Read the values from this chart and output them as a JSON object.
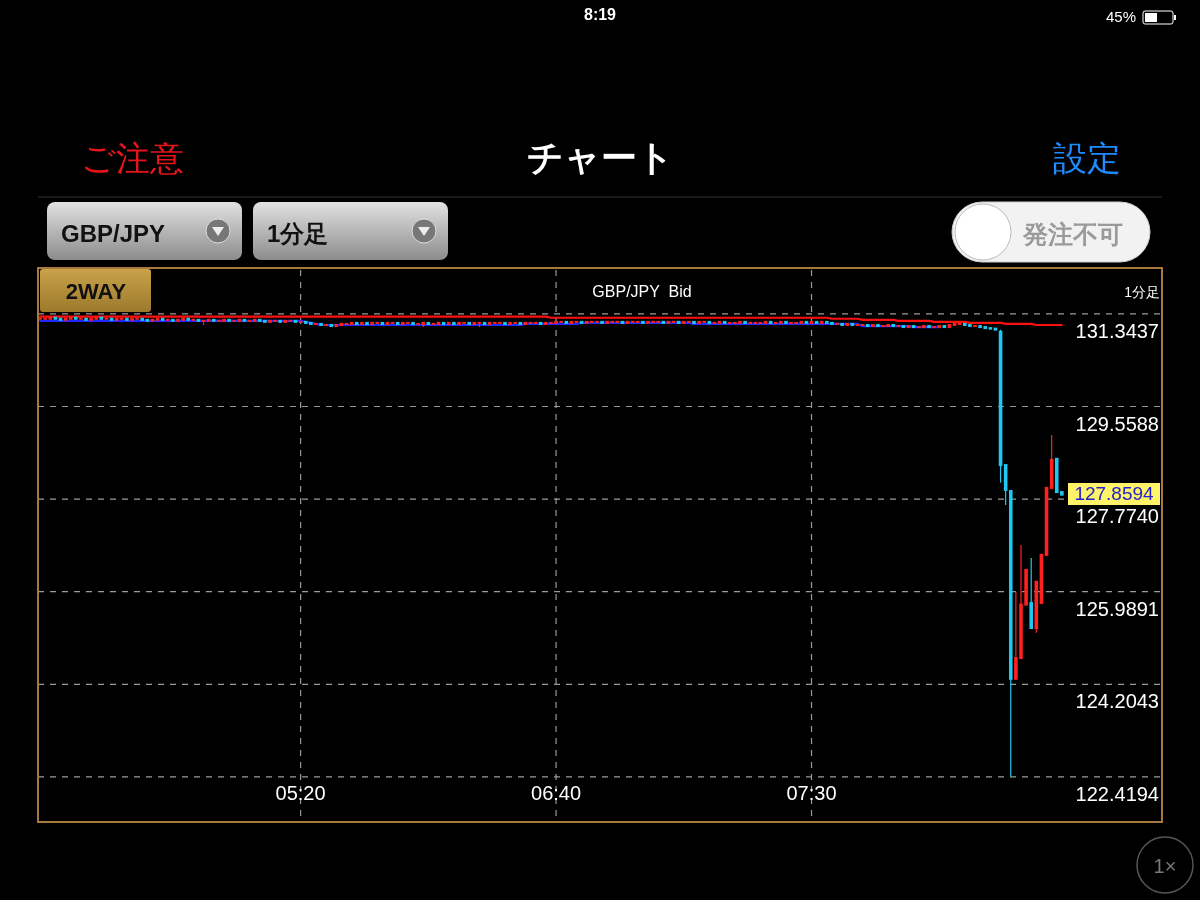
{
  "chart_data": {
    "type": "candlestick",
    "title": "GBP/JPY  Bid",
    "annotations": [
      "8:19",
      "45%",
      "ご注意",
      "チャート",
      "設定",
      "GBP/JPY",
      "1分足",
      "発注不可",
      "2WAY",
      "1分足",
      "1×",
      "127.8594"
    ],
    "categories": [
      null,
      null,
      null,
      null,
      null,
      null,
      null,
      null,
      null,
      null,
      null,
      null,
      null,
      null,
      null,
      null,
      null,
      null,
      null,
      null,
      null,
      null,
      null,
      null,
      null,
      null,
      null,
      null,
      null,
      null,
      null,
      null,
      null,
      null,
      null,
      null,
      null,
      null,
      null,
      null,
      null,
      null,
      null,
      null,
      null,
      null,
      null,
      null,
      null,
      null,
      null,
      "05:20",
      null,
      null,
      null,
      null,
      null,
      null,
      null,
      null,
      null,
      null,
      null,
      null,
      null,
      null,
      null,
      null,
      null,
      null,
      null,
      null,
      null,
      null,
      null,
      null,
      null,
      null,
      null,
      null,
      null,
      null,
      null,
      null,
      null,
      null,
      null,
      null,
      null,
      null,
      null,
      null,
      null,
      null,
      null,
      null,
      null,
      null,
      null,
      null,
      null,
      "06:40",
      null,
      null,
      null,
      null,
      null,
      null,
      null,
      null,
      null,
      null,
      null,
      null,
      null,
      null,
      null,
      null,
      null,
      null,
      null,
      null,
      null,
      null,
      null,
      null,
      null,
      null,
      null,
      null,
      null,
      null,
      null,
      null,
      null,
      null,
      null,
      null,
      null,
      null,
      null,
      null,
      null,
      null,
      null,
      null,
      null,
      null,
      null,
      null,
      null,
      "07:30",
      null,
      null,
      null,
      null,
      null,
      null,
      null,
      null,
      null,
      null,
      null,
      null,
      null,
      null,
      null,
      null,
      null,
      null,
      null,
      null,
      null,
      null,
      null,
      null,
      null,
      null,
      null,
      null,
      null,
      null,
      null,
      null,
      null,
      null,
      null,
      null,
      null,
      null,
      null,
      null,
      null,
      null,
      null,
      null,
      null,
      null,
      null,
      null,
      null,
      null,
      null,
      null,
      null,
      null,
      null,
      null,
      null,
      null,
      null,
      null,
      null,
      null,
      null,
      null,
      null,
      null,
      null,
      null
    ],
    "ohlc": [
      [
        131.25,
        131.25,
        131.25,
        131.25
      ],
      [
        131.25,
        131.25,
        131.25,
        131.25
      ],
      [
        131.25,
        131.27,
        131.25,
        131.27
      ],
      [
        131.27,
        131.27,
        131.25,
        131.25
      ],
      [
        131.25,
        131.25,
        131.23,
        131.23
      ],
      [
        131.23,
        131.25,
        131.23,
        131.25
      ],
      [
        131.25,
        131.27,
        131.25,
        131.27
      ],
      [
        131.27,
        131.27,
        131.25,
        131.25
      ],
      [
        131.25,
        131.25,
        131.25,
        131.25
      ],
      [
        131.25,
        131.25,
        131.23,
        131.23
      ],
      [
        131.23,
        131.25,
        131.23,
        131.25
      ],
      [
        131.25,
        131.27,
        131.25,
        131.27
      ],
      [
        131.27,
        131.27,
        131.25,
        131.25
      ],
      [
        131.25,
        131.25,
        131.25,
        131.25
      ],
      [
        131.25,
        131.25,
        131.23,
        131.23
      ],
      [
        131.23,
        131.25,
        131.23,
        131.25
      ],
      [
        131.25,
        131.25,
        131.25,
        131.25
      ],
      [
        131.25,
        131.25,
        131.23,
        131.23
      ],
      [
        131.23,
        131.25,
        131.23,
        131.25
      ],
      [
        131.25,
        131.25,
        131.25,
        131.25
      ],
      [
        131.25,
        131.25,
        131.23,
        131.23
      ],
      [
        131.23,
        131.23,
        131.21,
        131.21
      ],
      [
        131.21,
        131.23,
        131.21,
        131.23
      ],
      [
        131.23,
        131.25,
        131.23,
        131.25
      ],
      [
        131.25,
        131.25,
        131.23,
        131.23
      ],
      [
        131.23,
        131.23,
        131.23,
        131.23
      ],
      [
        131.23,
        131.23,
        131.21,
        131.21
      ],
      [
        131.21,
        131.23,
        131.21,
        131.23
      ],
      [
        131.23,
        131.25,
        131.23,
        131.25
      ],
      [
        131.25,
        131.25,
        131.23,
        131.23
      ],
      [
        131.23,
        131.23,
        131.23,
        131.23
      ],
      [
        131.23,
        131.23,
        131.21,
        131.21
      ],
      [
        131.21,
        131.21,
        131.13,
        131.21
      ],
      [
        131.21,
        131.23,
        131.21,
        131.23
      ],
      [
        131.23,
        131.23,
        131.21,
        131.21
      ],
      [
        131.21,
        131.21,
        131.21,
        131.21
      ],
      [
        131.21,
        131.23,
        131.21,
        131.23
      ],
      [
        131.23,
        131.23,
        131.21,
        131.21
      ],
      [
        131.21,
        131.21,
        131.21,
        131.21
      ],
      [
        131.21,
        131.23,
        131.21,
        131.23
      ],
      [
        131.23,
        131.23,
        131.21,
        131.21
      ],
      [
        131.21,
        131.21,
        131.21,
        131.21
      ],
      [
        131.21,
        131.23,
        131.21,
        131.23
      ],
      [
        131.23,
        131.23,
        131.21,
        131.21
      ],
      [
        131.21,
        131.21,
        131.19,
        131.19
      ],
      [
        131.19,
        131.21,
        131.19,
        131.21
      ],
      [
        131.21,
        131.21,
        131.21,
        131.21
      ],
      [
        131.21,
        131.21,
        131.19,
        131.19
      ],
      [
        131.19,
        131.21,
        131.19,
        131.21
      ],
      [
        131.21,
        131.21,
        131.21,
        131.21
      ],
      [
        131.21,
        131.21,
        131.19,
        131.19
      ],
      [
        131.19,
        131.19,
        131.19,
        131.19
      ],
      [
        131.19,
        131.19,
        131.17,
        131.17
      ],
      [
        131.17,
        131.17,
        131.15,
        131.15
      ],
      [
        131.15,
        131.15,
        131.15,
        131.15
      ],
      [
        131.15,
        131.15,
        131.13,
        131.13
      ],
      [
        131.13,
        131.13,
        131.13,
        131.13
      ],
      [
        131.13,
        131.13,
        131.11,
        131.11
      ],
      [
        131.11,
        131.13,
        131.11,
        131.13
      ],
      [
        131.13,
        131.15,
        131.13,
        131.15
      ],
      [
        131.15,
        131.15,
        131.15,
        131.15
      ],
      [
        131.15,
        131.17,
        131.15,
        131.17
      ],
      [
        131.17,
        131.17,
        131.15,
        131.15
      ],
      [
        131.15,
        131.17,
        131.15,
        131.17
      ],
      [
        131.17,
        131.17,
        131.15,
        131.15
      ],
      [
        131.15,
        131.17,
        131.15,
        131.17
      ],
      [
        131.17,
        131.17,
        131.17,
        131.17
      ],
      [
        131.17,
        131.17,
        131.15,
        131.15
      ],
      [
        131.15,
        131.17,
        131.15,
        131.17
      ],
      [
        131.17,
        131.17,
        131.17,
        131.17
      ],
      [
        131.17,
        131.17,
        131.15,
        131.15
      ],
      [
        131.15,
        131.17,
        131.15,
        131.17
      ],
      [
        131.17,
        131.17,
        131.17,
        131.17
      ],
      [
        131.17,
        131.17,
        131.15,
        131.15
      ],
      [
        131.15,
        131.15,
        131.15,
        131.15
      ],
      [
        131.15,
        131.17,
        131.09,
        131.17
      ],
      [
        131.17,
        131.17,
        131.15,
        131.15
      ],
      [
        131.15,
        131.15,
        131.15,
        131.15
      ],
      [
        131.15,
        131.17,
        131.15,
        131.17
      ],
      [
        131.17,
        131.17,
        131.15,
        131.15
      ],
      [
        131.15,
        131.17,
        131.15,
        131.17
      ],
      [
        131.17,
        131.17,
        131.15,
        131.15
      ],
      [
        131.15,
        131.17,
        131.15,
        131.17
      ],
      [
        131.17,
        131.17,
        131.17,
        131.17
      ],
      [
        131.17,
        131.17,
        131.15,
        131.15
      ],
      [
        131.15,
        131.17,
        131.15,
        131.17
      ],
      [
        131.17,
        131.17,
        131.09,
        131.17
      ],
      [
        131.17,
        131.17,
        131.15,
        131.15
      ],
      [
        131.15,
        131.17,
        131.15,
        131.17
      ],
      [
        131.17,
        131.17,
        131.17,
        131.17
      ],
      [
        131.17,
        131.17,
        131.17,
        131.17
      ],
      [
        131.17,
        131.17,
        131.15,
        131.15
      ],
      [
        131.15,
        131.17,
        131.15,
        131.17
      ],
      [
        131.17,
        131.17,
        131.17,
        131.17
      ],
      [
        131.17,
        131.17,
        131.15,
        131.15
      ],
      [
        131.15,
        131.17,
        131.15,
        131.17
      ],
      [
        131.17,
        131.17,
        131.17,
        131.17
      ],
      [
        131.17,
        131.17,
        131.17,
        131.17
      ],
      [
        131.17,
        131.17,
        131.15,
        131.15
      ],
      [
        131.15,
        131.17,
        131.15,
        131.17
      ],
      [
        131.17,
        131.17,
        131.17,
        131.17
      ],
      [
        131.17,
        131.19,
        131.17,
        131.19
      ],
      [
        131.19,
        131.19,
        131.19,
        131.19
      ],
      [
        131.19,
        131.19,
        131.17,
        131.17
      ],
      [
        131.17,
        131.19,
        131.17,
        131.19
      ],
      [
        131.19,
        131.19,
        131.19,
        131.19
      ],
      [
        131.19,
        131.19,
        131.17,
        131.17
      ],
      [
        131.17,
        131.19,
        131.17,
        131.19
      ],
      [
        131.19,
        131.19,
        131.19,
        131.19
      ],
      [
        131.19,
        131.19,
        131.19,
        131.19
      ],
      [
        131.19,
        131.19,
        131.17,
        131.17
      ],
      [
        131.17,
        131.19,
        131.17,
        131.19
      ],
      [
        131.19,
        131.19,
        131.19,
        131.19
      ],
      [
        131.19,
        131.19,
        131.19,
        131.19
      ],
      [
        131.19,
        131.19,
        131.17,
        131.17
      ],
      [
        131.17,
        131.19,
        131.17,
        131.19
      ],
      [
        131.19,
        131.19,
        131.19,
        131.19
      ],
      [
        131.19,
        131.19,
        131.19,
        131.19
      ],
      [
        131.19,
        131.19,
        131.17,
        131.17
      ],
      [
        131.17,
        131.19,
        131.17,
        131.19
      ],
      [
        131.19,
        131.19,
        131.19,
        131.19
      ],
      [
        131.19,
        131.19,
        131.19,
        131.19
      ],
      [
        131.19,
        131.19,
        131.17,
        131.17
      ],
      [
        131.17,
        131.19,
        131.17,
        131.19
      ],
      [
        131.19,
        131.19,
        131.19,
        131.19
      ],
      [
        131.19,
        131.19,
        131.17,
        131.17
      ],
      [
        131.17,
        131.19,
        131.17,
        131.19
      ],
      [
        131.19,
        131.19,
        131.19,
        131.19
      ],
      [
        131.19,
        131.19,
        131.17,
        131.17
      ],
      [
        131.17,
        131.19,
        131.17,
        131.19
      ],
      [
        131.19,
        131.19,
        131.19,
        131.19
      ],
      [
        131.19,
        131.19,
        131.17,
        131.17
      ],
      [
        131.17,
        131.17,
        131.17,
        131.17
      ],
      [
        131.17,
        131.19,
        131.17,
        131.19
      ],
      [
        131.19,
        131.19,
        131.17,
        131.17
      ],
      [
        131.17,
        131.17,
        131.17,
        131.17
      ],
      [
        131.17,
        131.17,
        131.17,
        131.17
      ],
      [
        131.17,
        131.19,
        131.17,
        131.19
      ],
      [
        131.19,
        131.19,
        131.17,
        131.17
      ],
      [
        131.17,
        131.17,
        131.17,
        131.17
      ],
      [
        131.17,
        131.17,
        131.17,
        131.17
      ],
      [
        131.17,
        131.17,
        131.17,
        131.17
      ],
      [
        131.17,
        131.19,
        131.17,
        131.19
      ],
      [
        131.19,
        131.19,
        131.17,
        131.17
      ],
      [
        131.17,
        131.17,
        131.17,
        131.17
      ],
      [
        131.17,
        131.19,
        131.17,
        131.19
      ],
      [
        131.19,
        131.19,
        131.17,
        131.17
      ],
      [
        131.17,
        131.17,
        131.17,
        131.17
      ],
      [
        131.17,
        131.17,
        131.17,
        131.17
      ],
      [
        131.17,
        131.19,
        131.17,
        131.19
      ],
      [
        131.19,
        131.19,
        131.17,
        131.17
      ],
      [
        131.17,
        131.19,
        131.17,
        131.19
      ],
      [
        131.19,
        131.19,
        131.17,
        131.17
      ],
      [
        131.17,
        131.19,
        131.17,
        131.19
      ],
      [
        131.19,
        131.19,
        131.17,
        131.17
      ],
      [
        131.17,
        131.17,
        131.15,
        131.15
      ],
      [
        131.15,
        131.15,
        131.15,
        131.15
      ],
      [
        131.15,
        131.15,
        131.13,
        131.13
      ],
      [
        131.13,
        131.15,
        131.13,
        131.15
      ],
      [
        131.15,
        131.15,
        131.13,
        131.13
      ],
      [
        131.13,
        131.13,
        131.13,
        131.13
      ],
      [
        131.13,
        131.13,
        131.13,
        131.13
      ],
      [
        131.13,
        131.13,
        131.11,
        131.11
      ],
      [
        131.11,
        131.13,
        131.11,
        131.13
      ],
      [
        131.13,
        131.13,
        131.11,
        131.11
      ],
      [
        131.11,
        131.11,
        131.11,
        131.11
      ],
      [
        131.11,
        131.13,
        131.11,
        131.13
      ],
      [
        131.13,
        131.13,
        131.11,
        131.11
      ],
      [
        131.11,
        131.11,
        131.11,
        131.11
      ],
      [
        131.11,
        131.11,
        131.09,
        131.09
      ],
      [
        131.09,
        131.11,
        131.09,
        131.11
      ],
      [
        131.11,
        131.11,
        131.09,
        131.09
      ],
      [
        131.09,
        131.09,
        131.09,
        131.09
      ],
      [
        131.09,
        131.11,
        131.09,
        131.11
      ],
      [
        131.11,
        131.11,
        131.09,
        131.09
      ],
      [
        131.09,
        131.09,
        131.09,
        131.09
      ],
      [
        131.09,
        131.11,
        131.09,
        131.11
      ],
      [
        131.11,
        131.11,
        131.09,
        131.09
      ],
      [
        131.09,
        131.13,
        131.09,
        131.13
      ],
      [
        131.13,
        131.15,
        131.13,
        131.15
      ],
      [
        131.15,
        131.15,
        131.15,
        131.15
      ],
      [
        131.15,
        131.15,
        131.13,
        131.13
      ],
      [
        131.13,
        131.13,
        131.11,
        131.11
      ],
      [
        131.11,
        131.11,
        131.11,
        131.11
      ],
      [
        131.11,
        131.11,
        131.09,
        131.09
      ],
      [
        131.09,
        131.09,
        131.07,
        131.07
      ],
      [
        131.07,
        131.07,
        131.06,
        131.06
      ],
      [
        131.06,
        131.06,
        131.04,
        131.04
      ],
      [
        131.0,
        131.04,
        128.09,
        128.43
      ],
      [
        128.43,
        128.43,
        127.66,
        127.95
      ],
      [
        127.93,
        127.93,
        122.42,
        124.31
      ],
      [
        124.31,
        125.99,
        124.31,
        124.71
      ],
      [
        124.71,
        126.89,
        124.71,
        125.74
      ],
      [
        125.74,
        126.41,
        125.74,
        126.41
      ],
      [
        125.77,
        126.64,
        125.29,
        125.29
      ],
      [
        125.29,
        126.18,
        125.2,
        126.18
      ],
      [
        125.77,
        126.7,
        125.77,
        126.7
      ],
      [
        126.7,
        127.99,
        126.7,
        127.99
      ],
      [
        127.99,
        129.01,
        127.99,
        128.53
      ],
      [
        128.55,
        128.55,
        127.91,
        127.91
      ],
      [
        127.91,
        127.91,
        127.86,
        127.86
      ],
      null,
      null,
      null,
      null,
      null,
      null,
      null,
      null,
      null,
      null,
      null,
      null,
      null,
      null,
      null,
      null,
      null,
      null,
      null
    ],
    "colors": [
      "#ff2020",
      "#ff2020",
      "#ff2020",
      "#1ec8f0",
      "#1ec8f0",
      "#ff2020",
      "#ff2020",
      "#1ec8f0",
      "#ff2020",
      "#1ec8f0",
      "#ff2020",
      "#ff2020",
      "#1ec8f0",
      "#ff2020",
      "#1ec8f0",
      "#ff2020",
      "#ff2020",
      "#1ec8f0",
      "#ff2020",
      "#ff2020",
      "#1ec8f0",
      "#1ec8f0",
      "#ff2020",
      "#ff2020",
      "#1ec8f0",
      "#ff2020",
      "#1ec8f0",
      "#ff2020",
      "#ff2020",
      "#1ec8f0",
      "#ff2020",
      "#1ec8f0",
      "#ff2020",
      "#ff2020",
      "#1ec8f0",
      "#ff2020",
      "#ff2020",
      "#1ec8f0",
      "#ff2020",
      "#ff2020",
      "#1ec8f0",
      "#ff2020",
      "#ff2020",
      "#1ec8f0",
      "#1ec8f0",
      "#ff2020",
      "#ff2020",
      "#1ec8f0",
      "#ff2020",
      "#ff2020",
      "#1ec8f0",
      "#ff2020",
      "#1ec8f0",
      "#1ec8f0",
      "#ff2020",
      "#1ec8f0",
      "#ff2020",
      "#1ec8f0",
      "#ff2020",
      "#ff2020",
      "#ff2020",
      "#ff2020",
      "#1ec8f0",
      "#ff2020",
      "#1ec8f0",
      "#ff2020",
      "#ff2020",
      "#1ec8f0",
      "#ff2020",
      "#ff2020",
      "#1ec8f0",
      "#ff2020",
      "#ff2020",
      "#1ec8f0",
      "#ff2020",
      "#ff2020",
      "#1ec8f0",
      "#ff2020",
      "#ff2020",
      "#1ec8f0",
      "#ff2020",
      "#1ec8f0",
      "#ff2020",
      "#ff2020",
      "#1ec8f0",
      "#ff2020",
      "#ff2020",
      "#1ec8f0",
      "#ff2020",
      "#ff2020",
      "#ff2020",
      "#1ec8f0",
      "#ff2020",
      "#ff2020",
      "#1ec8f0",
      "#ff2020",
      "#ff2020",
      "#ff2020",
      "#1ec8f0",
      "#ff2020",
      "#ff2020",
      "#ff2020",
      "#ff2020",
      "#1ec8f0",
      "#ff2020",
      "#ff2020",
      "#1ec8f0",
      "#ff2020",
      "#ff2020",
      "#ff2020",
      "#1ec8f0",
      "#ff2020",
      "#ff2020",
      "#ff2020",
      "#1ec8f0",
      "#ff2020",
      "#ff2020",
      "#ff2020",
      "#1ec8f0",
      "#ff2020",
      "#ff2020",
      "#ff2020",
      "#1ec8f0",
      "#ff2020",
      "#ff2020",
      "#1ec8f0",
      "#ff2020",
      "#ff2020",
      "#1ec8f0",
      "#ff2020",
      "#ff2020",
      "#1ec8f0",
      "#ff2020",
      "#ff2020",
      "#1ec8f0",
      "#ff2020",
      "#ff2020",
      "#ff2020",
      "#1ec8f0",
      "#ff2020",
      "#ff2020",
      "#ff2020",
      "#ff2020",
      "#1ec8f0",
      "#ff2020",
      "#ff2020",
      "#1ec8f0",
      "#ff2020",
      "#ff2020",
      "#ff2020",
      "#1ec8f0",
      "#ff2020",
      "#1ec8f0",
      "#ff2020",
      "#1ec8f0",
      "#1ec8f0",
      "#ff2020",
      "#1ec8f0",
      "#ff2020",
      "#1ec8f0",
      "#ff2020",
      "#ff2020",
      "#1ec8f0",
      "#ff2020",
      "#1ec8f0",
      "#ff2020",
      "#ff2020",
      "#1ec8f0",
      "#ff2020",
      "#1ec8f0",
      "#ff2020",
      "#1ec8f0",
      "#ff2020",
      "#ff2020",
      "#1ec8f0",
      "#ff2020",
      "#ff2020",
      "#1ec8f0",
      "#ff2020",
      "#ff2020",
      "#ff2020",
      "#1ec8f0",
      "#1ec8f0",
      "#ff2020",
      "#1ec8f0",
      "#1ec8f0",
      "#1ec8f0",
      "#1ec8f0",
      "#1ec8f0",
      "#1ec8f0",
      "#1ec8f0",
      "#ff2020",
      "#ff2020",
      "#ff2020",
      "#1ec8f0",
      "#ff2020",
      "#ff2020",
      "#ff2020",
      "#ff2020",
      "#1ec8f0",
      "#1ec8f0",
      null,
      null,
      null,
      null,
      null,
      null,
      null,
      null,
      null,
      null,
      null,
      null,
      null,
      null,
      null,
      null,
      null,
      null,
      null
    ],
    "series": [
      {
        "type": "line",
        "color": "#1e28ff",
        "values": [
          131.21,
          131.21,
          131.21,
          131.21,
          131.21,
          131.21,
          131.21,
          131.21,
          131.21,
          131.21,
          131.21,
          131.21,
          131.21,
          131.21,
          131.21,
          131.21,
          131.21,
          131.21,
          131.21,
          131.21,
          131.21,
          131.21,
          131.21,
          131.21,
          131.21,
          131.21,
          131.21,
          131.21,
          131.21,
          131.21,
          131.21,
          131.21,
          131.21,
          131.21,
          131.21,
          131.21,
          131.21,
          131.21,
          131.21,
          131.21,
          131.21,
          131.21,
          131.21,
          131.21,
          131.21,
          131.21,
          131.21,
          131.21,
          131.21,
          131.21,
          131.21,
          131.21,
          131.19,
          131.17,
          131.15,
          131.13,
          131.13,
          131.13,
          131.13,
          131.13,
          131.13,
          131.13,
          131.13,
          131.13,
          131.13,
          131.13,
          131.13,
          131.13,
          131.13,
          131.13,
          131.13,
          131.13,
          131.13,
          131.13,
          131.13,
          131.13,
          131.13,
          131.13,
          131.13,
          131.13,
          131.13,
          131.13,
          131.13,
          131.13,
          131.13,
          131.13,
          131.13,
          131.13,
          131.13,
          131.13,
          131.13,
          131.13,
          131.13,
          131.13,
          131.13,
          131.15,
          131.15,
          131.15,
          131.15,
          131.15,
          131.15,
          131.15,
          131.15,
          131.15,
          131.15,
          131.15,
          131.17,
          131.17,
          131.17,
          131.17,
          131.17,
          131.17,
          131.17,
          131.17,
          131.17,
          131.17,
          131.17,
          131.17,
          131.17,
          131.17,
          131.17,
          131.17,
          131.17,
          131.17,
          131.17,
          131.17,
          131.17,
          131.17,
          131.15,
          131.15,
          131.15,
          131.15,
          131.15,
          131.15,
          131.15,
          131.15,
          131.15,
          131.15,
          131.15,
          131.15,
          131.15,
          131.15,
          131.15,
          131.15,
          131.15,
          131.15,
          131.15,
          131.15,
          131.15,
          131.15,
          131.15,
          131.15,
          131.15,
          131.15,
          131.15,
          131.15,
          131.15,
          131.15,
          131.15,
          131.15,
          131.15,
          131.11,
          131.11,
          131.11,
          131.11,
          131.11,
          131.11,
          131.11,
          131.11,
          131.11,
          131.11,
          131.09,
          131.09,
          131.09,
          131.09,
          131.09,
          131.09,
          null,
          null,
          null,
          null,
          null,
          null,
          null,
          null,
          null,
          null,
          null,
          null,
          null,
          null,
          null,
          null,
          null,
          null,
          null,
          null,
          null,
          null,
          null,
          null,
          null,
          null,
          null,
          null,
          null,
          null,
          null,
          null,
          null,
          null,
          null,
          null,
          null,
          null,
          null,
          null,
          null,
          null,
          null
        ]
      },
      {
        "type": "line",
        "color": "#ff1010",
        "values": [
          131.29,
          131.29,
          131.29,
          131.29,
          131.29,
          131.29,
          131.29,
          131.29,
          131.29,
          131.29,
          131.29,
          131.29,
          131.29,
          131.29,
          131.29,
          131.29,
          131.29,
          131.29,
          131.29,
          131.29,
          131.29,
          131.29,
          131.29,
          131.29,
          131.29,
          131.29,
          131.29,
          131.29,
          131.29,
          131.29,
          131.29,
          131.29,
          131.29,
          131.29,
          131.29,
          131.29,
          131.29,
          131.29,
          131.29,
          131.29,
          131.29,
          131.29,
          131.29,
          131.29,
          131.29,
          131.29,
          131.29,
          131.29,
          131.29,
          131.29,
          131.29,
          131.29,
          131.29,
          131.29,
          131.29,
          131.29,
          131.29,
          131.29,
          131.29,
          131.29,
          131.29,
          131.29,
          131.29,
          131.29,
          131.29,
          131.29,
          131.29,
          131.29,
          131.29,
          131.29,
          131.29,
          131.29,
          131.29,
          131.29,
          131.29,
          131.29,
          131.29,
          131.29,
          131.29,
          131.29,
          131.29,
          131.29,
          131.29,
          131.29,
          131.29,
          131.29,
          131.29,
          131.29,
          131.29,
          131.29,
          131.29,
          131.29,
          131.29,
          131.29,
          131.29,
          131.29,
          131.29,
          131.29,
          131.29,
          131.29,
          131.27,
          131.27,
          131.27,
          131.27,
          131.27,
          131.27,
          131.27,
          131.27,
          131.27,
          131.27,
          131.27,
          131.27,
          131.27,
          131.27,
          131.27,
          131.27,
          131.27,
          131.27,
          131.27,
          131.27,
          131.27,
          131.27,
          131.27,
          131.27,
          131.27,
          131.27,
          131.27,
          131.27,
          131.27,
          131.27,
          131.27,
          131.27,
          131.27,
          131.27,
          131.27,
          131.27,
          131.27,
          131.27,
          131.27,
          131.27,
          131.27,
          131.27,
          131.27,
          131.27,
          131.27,
          131.27,
          131.27,
          131.27,
          131.27,
          131.27,
          131.27,
          131.27,
          131.27,
          131.27,
          131.27,
          131.25,
          131.25,
          131.25,
          131.25,
          131.25,
          131.25,
          131.23,
          131.23,
          131.23,
          131.23,
          131.23,
          131.23,
          131.23,
          131.21,
          131.21,
          131.21,
          131.21,
          131.21,
          131.21,
          131.21,
          131.19,
          131.19,
          131.19,
          131.19,
          131.19,
          131.19,
          131.19,
          131.17,
          131.17,
          131.17,
          131.17,
          131.17,
          131.17,
          131.17,
          131.15,
          131.15,
          131.15,
          131.15,
          131.15,
          131.15,
          131.13,
          131.13,
          131.13,
          131.13,
          131.13,
          131.13,
          null,
          null,
          null,
          null,
          null,
          null,
          null,
          null,
          null,
          null,
          null,
          null,
          null,
          null,
          null,
          null,
          null,
          null,
          null
        ]
      }
    ],
    "ylim": [
      121.55,
      132.19
    ],
    "yticks": [
      131.3437,
      129.5588,
      {
        "value": 127.774,
        "label": "127.7740"
      },
      125.9891,
      124.2043,
      122.4194
    ],
    "grid": true
  }
}
